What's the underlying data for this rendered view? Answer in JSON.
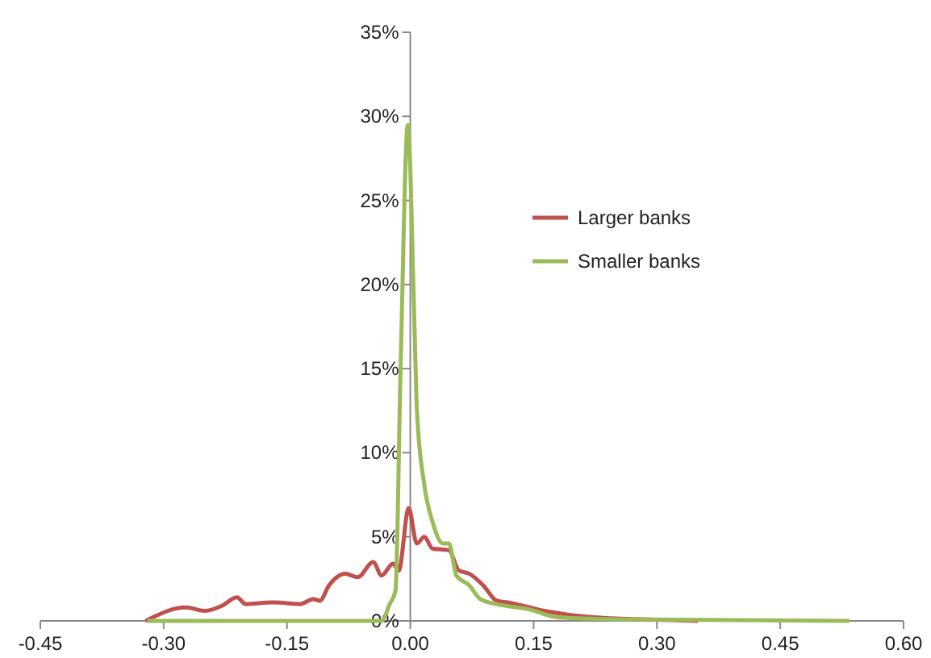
{
  "chart_data": {
    "type": "line",
    "xlim": [
      -0.45,
      0.6
    ],
    "xticks": [
      {
        "value": -0.45,
        "label": "-0.45"
      },
      {
        "value": -0.3,
        "label": "-0.30"
      },
      {
        "value": -0.15,
        "label": "-0.15"
      },
      {
        "value": 0,
        "label": "0.00"
      },
      {
        "value": 0.15,
        "label": "0.15"
      },
      {
        "value": 0.3,
        "label": "0.30"
      },
      {
        "value": 0.45,
        "label": "0.45"
      },
      {
        "value": 0.6,
        "label": "0.60"
      }
    ],
    "ylim": [
      0,
      35
    ],
    "yticks": [
      {
        "value": 0,
        "label": "0%"
      },
      {
        "value": 5,
        "label": "5%"
      },
      {
        "value": 10,
        "label": "10%"
      },
      {
        "value": 15,
        "label": "15%"
      },
      {
        "value": 20,
        "label": "20%"
      },
      {
        "value": 25,
        "label": "25%"
      },
      {
        "value": 30,
        "label": "30%"
      },
      {
        "value": 35,
        "label": "35%"
      }
    ],
    "legend": "right",
    "grid": false,
    "marker": "none",
    "line_style": "solid",
    "series": [
      {
        "name": "Larger banks",
        "color": "#c0504d",
        "x": [
          -0.322,
          -0.273,
          -0.25,
          -0.229,
          -0.211,
          -0.2,
          -0.167,
          -0.134,
          -0.118,
          -0.11,
          -0.099,
          -0.079,
          -0.064,
          -0.045,
          -0.035,
          -0.021,
          -0.014,
          -0.002,
          0.008,
          0.017,
          0.027,
          0.047,
          0.059,
          0.072,
          0.089,
          0.105,
          0.118,
          0.137,
          0.163,
          0.188,
          0.227,
          0.279,
          0.35
        ],
        "values": [
          0,
          0.8,
          0.6,
          0.9,
          1.4,
          1.0,
          1.1,
          1.0,
          1.3,
          1.2,
          2.1,
          2.8,
          2.6,
          3.5,
          2.7,
          3.4,
          3.0,
          6.7,
          4.6,
          5.0,
          4.3,
          4.2,
          3.0,
          2.8,
          2.1,
          1.2,
          1.1,
          0.9,
          0.6,
          0.4,
          0.2,
          0.1,
          0
        ]
      },
      {
        "name": "Smaller banks",
        "color": "#9bbb59",
        "x": [
          -0.32,
          -0.035,
          -0.025,
          -0.018,
          -0.012,
          -0.003,
          0.005,
          0.008,
          0.017,
          0.027,
          0.04,
          0.047,
          0.056,
          0.072,
          0.085,
          0.105,
          0.143,
          0.182,
          0.25,
          0.534
        ],
        "values": [
          0,
          0,
          1.0,
          1.8,
          14.6,
          29.5,
          17.7,
          12.6,
          8.1,
          5.9,
          4.6,
          4.6,
          2.7,
          2.1,
          1.3,
          1.0,
          0.7,
          0.2,
          0.1,
          0
        ]
      }
    ]
  }
}
